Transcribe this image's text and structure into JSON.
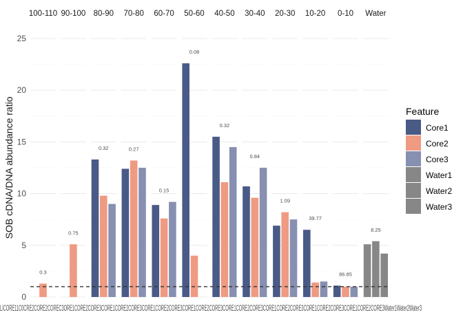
{
  "chart_data": {
    "type": "bar",
    "facet_type": "faceted-grouped-bar",
    "ylabel": "SOB cDNA/DNA abundance ratio",
    "xlabel": "",
    "ylim": [
      0,
      25
    ],
    "y_ticks": [
      0,
      5,
      10,
      15,
      20,
      25
    ],
    "y_tick_labels": [
      "0",
      "5",
      "10",
      "15",
      "20",
      "25"
    ],
    "reference_line": 1,
    "grid": true,
    "legend": {
      "title": "Feature",
      "position": "right",
      "items": [
        {
          "label": "Core1",
          "color": "#4a5a87"
        },
        {
          "label": "Core2",
          "color": "#ef9a82"
        },
        {
          "label": "Core3",
          "color": "#8790b0"
        },
        {
          "label": "Water1",
          "color": "#878787"
        },
        {
          "label": "Water2",
          "color": "#878787"
        },
        {
          "label": "Water3",
          "color": "#878787"
        }
      ]
    },
    "x_tick_labels_overlapped": "LICORE11C0CRE2CORE2COREC3ORE1CORE2CORE3CORE1CORE2CORE3CORE1CORE2CORE3CORE1CORE2CORE3CORE1CORE2CORE3CORE1CORE2CORE3CORE1CORE2CORE3CORE1CORE2CORE3Water1Water2Water3",
    "facets": [
      {
        "label": "100-110",
        "bars": [
          {
            "series": "Core1",
            "value": null
          },
          {
            "series": "Core2",
            "value": 1.3
          },
          {
            "series": "Core3",
            "value": null
          }
        ],
        "annotation": "0.3"
      },
      {
        "label": "90-100",
        "bars": [
          {
            "series": "Core1",
            "value": null
          },
          {
            "series": "Core2",
            "value": 5.1
          },
          {
            "series": "Core3",
            "value": null
          }
        ],
        "annotation": "0.75"
      },
      {
        "label": "80-90",
        "bars": [
          {
            "series": "Core1",
            "value": 13.3
          },
          {
            "series": "Core2",
            "value": 9.8
          },
          {
            "series": "Core3",
            "value": 9.0
          }
        ],
        "annotation": "0.32"
      },
      {
        "label": "70-80",
        "bars": [
          {
            "series": "Core1",
            "value": 12.4
          },
          {
            "series": "Core2",
            "value": 13.2
          },
          {
            "series": "Core3",
            "value": 12.5
          }
        ],
        "annotation": "0.27"
      },
      {
        "label": "60-70",
        "bars": [
          {
            "series": "Core1",
            "value": 8.9
          },
          {
            "series": "Core2",
            "value": 7.6
          },
          {
            "series": "Core3",
            "value": 9.2
          }
        ],
        "annotation": "0.15"
      },
      {
        "label": "50-60",
        "bars": [
          {
            "series": "Core1",
            "value": 22.6
          },
          {
            "series": "Core2",
            "value": 4.0
          },
          {
            "series": "Core3",
            "value": null
          }
        ],
        "annotation": "0.08"
      },
      {
        "label": "40-50",
        "bars": [
          {
            "series": "Core1",
            "value": 15.5
          },
          {
            "series": "Core2",
            "value": 11.1
          },
          {
            "series": "Core3",
            "value": 14.5
          }
        ],
        "annotation": "0.32"
      },
      {
        "label": "30-40",
        "bars": [
          {
            "series": "Core1",
            "value": 10.7
          },
          {
            "series": "Core2",
            "value": 9.6
          },
          {
            "series": "Core3",
            "value": 12.5
          }
        ],
        "annotation": "0.84"
      },
      {
        "label": "20-30",
        "bars": [
          {
            "series": "Core1",
            "value": 6.9
          },
          {
            "series": "Core2",
            "value": 8.2
          },
          {
            "series": "Core3",
            "value": 7.5
          }
        ],
        "annotation": "1.09"
      },
      {
        "label": "10-20",
        "bars": [
          {
            "series": "Core1",
            "value": 6.5
          },
          {
            "series": "Core2",
            "value": 1.4
          },
          {
            "series": "Core3",
            "value": 1.5
          }
        ],
        "annotation": "39.77"
      },
      {
        "label": "0-10",
        "bars": [
          {
            "series": "Core1",
            "value": 1.1
          },
          {
            "series": "Core2",
            "value": 1.0
          },
          {
            "series": "Core3",
            "value": 1.0
          }
        ],
        "annotation": "86.85"
      },
      {
        "label": "Water",
        "bars": [
          {
            "series": "Water1",
            "value": 5.1
          },
          {
            "series": "Water2",
            "value": 5.4
          },
          {
            "series": "Water3",
            "value": 4.2
          }
        ],
        "annotation": "8.25"
      }
    ]
  }
}
